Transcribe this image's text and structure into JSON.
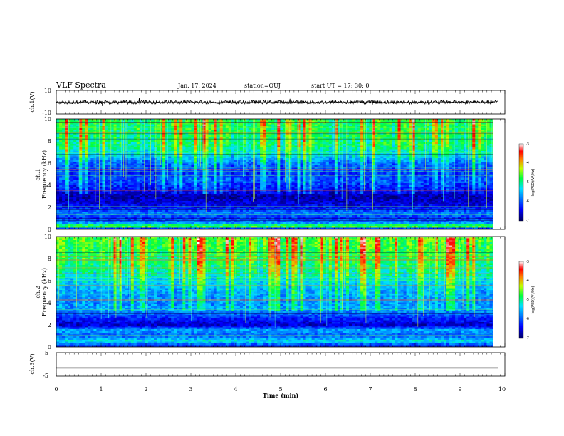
{
  "header": {
    "title": "VLF Spectra",
    "date": "Jan. 17, 2024",
    "station": "station=OUJ",
    "start": "start  UT  =   17: 30: 0"
  },
  "axis": {
    "xlabel": "Time  (min)",
    "xticks": [
      "0",
      "1",
      "2",
      "3",
      "4",
      "5",
      "6",
      "7",
      "8",
      "9",
      "10"
    ],
    "ch1v_label": "ch.1(V)",
    "ch1v_ticks": [
      "10",
      "-10"
    ],
    "spec1_label_top": "ch.1",
    "spec1_label": "Frequency  (kHz)",
    "spec2_label_top": "ch.2",
    "spec2_label": "Frequency  (kHz)",
    "freq_ticks": [
      "10",
      "8",
      "6",
      "4",
      "2",
      "0"
    ],
    "ch3v_label": "ch.3(V)",
    "ch3v_ticks": [
      "5",
      "-5"
    ]
  },
  "colorbar": {
    "label": "log(PSD)(V²/Hz)",
    "ticks": [
      "-3",
      "-4",
      "-5",
      "-6",
      "-7"
    ]
  },
  "chart_data": [
    {
      "type": "line",
      "title": "ch.1(V)",
      "x_range_min": [
        0,
        9.85
      ],
      "ylim": [
        -10,
        10
      ],
      "mean": 0,
      "noise_amplitude": 1.5
    },
    {
      "type": "heatmap",
      "title": "ch.1",
      "xlabel": "Time  (min)",
      "ylabel": "Frequency  (kHz)",
      "x_range_min": [
        0,
        9.85
      ],
      "ylim_khz": [
        0,
        10
      ],
      "colorbar_range_log_psd": [
        -7,
        -3
      ],
      "band_levels_khz_log_psd": [
        [
          0.0,
          -6.8
        ],
        [
          0.3,
          -4.2
        ],
        [
          0.5,
          -5.6
        ],
        [
          1.0,
          -6.2
        ],
        [
          1.5,
          -5.8
        ],
        [
          2.0,
          -6.4
        ],
        [
          2.5,
          -6.6
        ],
        [
          3.0,
          -6.7
        ],
        [
          3.5,
          -6.4
        ],
        [
          4.0,
          -6.2
        ],
        [
          4.5,
          -6.0
        ],
        [
          5.0,
          -6.2
        ],
        [
          6.0,
          -5.9
        ],
        [
          6.8,
          -5.3
        ],
        [
          7.5,
          -5.0
        ],
        [
          8.5,
          -4.9
        ],
        [
          10.0,
          -4.8
        ]
      ]
    },
    {
      "type": "heatmap",
      "title": "ch.2",
      "xlabel": "Time  (min)",
      "ylabel": "Frequency  (kHz)",
      "x_range_min": [
        0,
        9.85
      ],
      "ylim_khz": [
        0,
        10
      ],
      "colorbar_range_log_psd": [
        -7,
        -3
      ],
      "band_levels_khz_log_psd": [
        [
          0.0,
          -6.6
        ],
        [
          0.5,
          -5.2
        ],
        [
          1.0,
          -6.0
        ],
        [
          1.5,
          -5.6
        ],
        [
          2.0,
          -6.6
        ],
        [
          2.5,
          -6.3
        ],
        [
          3.0,
          -5.9
        ],
        [
          3.5,
          -5.6
        ],
        [
          4.0,
          -5.7
        ],
        [
          5.0,
          -5.6
        ],
        [
          6.0,
          -5.3
        ],
        [
          7.0,
          -5.0
        ],
        [
          8.0,
          -4.8
        ],
        [
          9.0,
          -4.7
        ],
        [
          10.0,
          -4.6
        ]
      ]
    },
    {
      "type": "line",
      "title": "ch.3(V)",
      "x_range_min": [
        0,
        9.85
      ],
      "ylim": [
        -5,
        5
      ],
      "constant_value": -1.5
    }
  ]
}
